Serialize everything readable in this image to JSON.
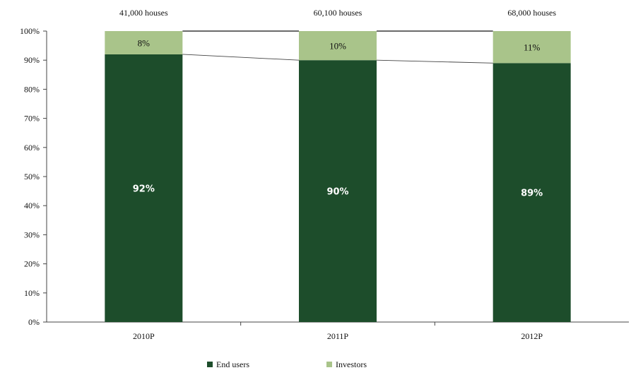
{
  "chart_data": {
    "type": "bar",
    "stacked": true,
    "categories": [
      "2010P",
      "2011P",
      "2012P"
    ],
    "totals": [
      "41,000 houses",
      "60,100 houses",
      "68,000 houses"
    ],
    "series": [
      {
        "name": "End users",
        "values": [
          92,
          90,
          89
        ],
        "labels": [
          "92%",
          "90%",
          "89%"
        ],
        "color": "#1d4d2b"
      },
      {
        "name": "Investors",
        "values": [
          8,
          10,
          11
        ],
        "labels": [
          "8%",
          "10%",
          "11%"
        ],
        "color": "#a9c48a"
      }
    ],
    "ylim": [
      0,
      100
    ],
    "yticks": [
      0,
      10,
      20,
      30,
      40,
      50,
      60,
      70,
      80,
      90,
      100
    ],
    "ytick_labels": [
      "0%",
      "10%",
      "20%",
      "30%",
      "40%",
      "50%",
      "60%",
      "70%",
      "80%",
      "90%",
      "100%"
    ],
    "title": "",
    "xlabel": "",
    "ylabel": "",
    "grid": false,
    "series_lines": true,
    "legend": "bottom"
  }
}
